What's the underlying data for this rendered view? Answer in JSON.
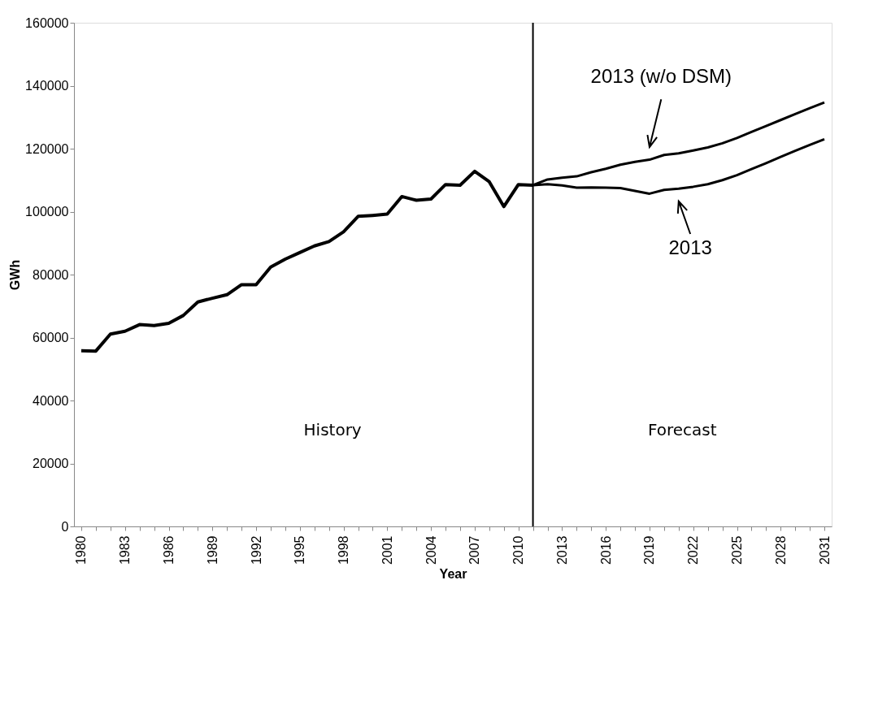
{
  "chart_data": {
    "type": "line",
    "xlabel": "Year",
    "ylabel": "GWh",
    "x": [
      1980,
      1981,
      1982,
      1983,
      1984,
      1985,
      1986,
      1987,
      1988,
      1989,
      1990,
      1991,
      1992,
      1993,
      1994,
      1995,
      1996,
      1997,
      1998,
      1999,
      2000,
      2001,
      2002,
      2003,
      2004,
      2005,
      2006,
      2007,
      2008,
      2009,
      2010,
      2011,
      2012,
      2013,
      2014,
      2015,
      2016,
      2017,
      2018,
      2019,
      2020,
      2021,
      2022,
      2023,
      2024,
      2025,
      2026,
      2027,
      2028,
      2029,
      2030,
      2031
    ],
    "xlim": [
      1979.5,
      2031.5
    ],
    "xticks": [
      1980,
      {
        "value": 1981,
        "label": null
      },
      {
        "value": 1982,
        "label": null
      },
      1983,
      {
        "value": 1984,
        "label": null
      },
      {
        "value": 1985,
        "label": null
      },
      1986,
      {
        "value": 1987,
        "label": null
      },
      {
        "value": 1988,
        "label": null
      },
      1989,
      {
        "value": 1990,
        "label": null
      },
      {
        "value": 1991,
        "label": null
      },
      1992,
      {
        "value": 1993,
        "label": null
      },
      {
        "value": 1994,
        "label": null
      },
      1995,
      {
        "value": 1996,
        "label": null
      },
      {
        "value": 1997,
        "label": null
      },
      1998,
      {
        "value": 1999,
        "label": null
      },
      {
        "value": 2000,
        "label": null
      },
      2001,
      {
        "value": 2002,
        "label": null
      },
      {
        "value": 2003,
        "label": null
      },
      2004,
      {
        "value": 2005,
        "label": null
      },
      {
        "value": 2006,
        "label": null
      },
      2007,
      {
        "value": 2008,
        "label": null
      },
      {
        "value": 2009,
        "label": null
      },
      2010,
      {
        "value": 2011,
        "label": null
      },
      {
        "value": 2012,
        "label": null
      },
      2013,
      {
        "value": 2014,
        "label": null
      },
      {
        "value": 2015,
        "label": null
      },
      2016,
      {
        "value": 2017,
        "label": null
      },
      {
        "value": 2018,
        "label": null
      },
      2019,
      {
        "value": 2020,
        "label": null
      },
      {
        "value": 2021,
        "label": null
      },
      2022,
      {
        "value": 2023,
        "label": null
      },
      {
        "value": 2024,
        "label": null
      },
      2025,
      {
        "value": 2026,
        "label": null
      },
      {
        "value": 2027,
        "label": null
      },
      2028,
      {
        "value": 2029,
        "label": null
      },
      {
        "value": 2030,
        "label": null
      },
      2031
    ],
    "series": [
      {
        "color": "#000000",
        "values": [
          55800,
          55700,
          61100,
          62000,
          64100,
          63800,
          64500,
          67000,
          71300,
          72500,
          73600,
          76800,
          76800,
          82400,
          84900,
          87000,
          89100,
          90500,
          93600,
          98500,
          98800,
          99200,
          104800,
          103600,
          104000,
          108600,
          108400,
          112800,
          109500,
          101600,
          108600,
          108400,
          null,
          null,
          null,
          null,
          null,
          null,
          null,
          null,
          null,
          null,
          null,
          null,
          null,
          null,
          null,
          null,
          null,
          null,
          null,
          null
        ]
      },
      {
        "name": "2013 (w/o DSM)",
        "color": "#000000",
        "values": [
          null,
          null,
          null,
          null,
          null,
          null,
          null,
          null,
          null,
          null,
          null,
          null,
          null,
          null,
          null,
          null,
          null,
          null,
          null,
          null,
          null,
          null,
          null,
          null,
          null,
          null,
          null,
          null,
          null,
          null,
          null,
          108400,
          110200,
          110800,
          111200,
          112500,
          113600,
          114900,
          115800,
          116500,
          118000,
          118500,
          119400,
          120400,
          121700,
          123400,
          125300,
          127200,
          129100,
          131000,
          132900,
          134700
        ]
      },
      {
        "name": "2013",
        "color": "#000000",
        "values": [
          null,
          null,
          null,
          null,
          null,
          null,
          null,
          null,
          null,
          null,
          null,
          null,
          null,
          null,
          null,
          null,
          null,
          null,
          null,
          null,
          null,
          null,
          null,
          null,
          null,
          null,
          null,
          null,
          null,
          null,
          null,
          108400,
          108700,
          108300,
          107600,
          107700,
          107600,
          107500,
          106600,
          105700,
          106900,
          107300,
          107900,
          108700,
          110000,
          111600,
          113500,
          115400,
          117400,
          119300,
          121200,
          123000
        ]
      }
    ],
    "ylim": [
      0,
      160000
    ],
    "yticks": [
      0,
      20000,
      40000,
      60000,
      80000,
      100000,
      120000,
      140000,
      160000
    ],
    "grid": false,
    "marker": "none",
    "line_style": "solid",
    "ref_lines": [
      {
        "axis": "x",
        "value": 2011,
        "color": "#000000"
      }
    ],
    "annotations": [
      "History",
      "Forecast"
    ]
  }
}
